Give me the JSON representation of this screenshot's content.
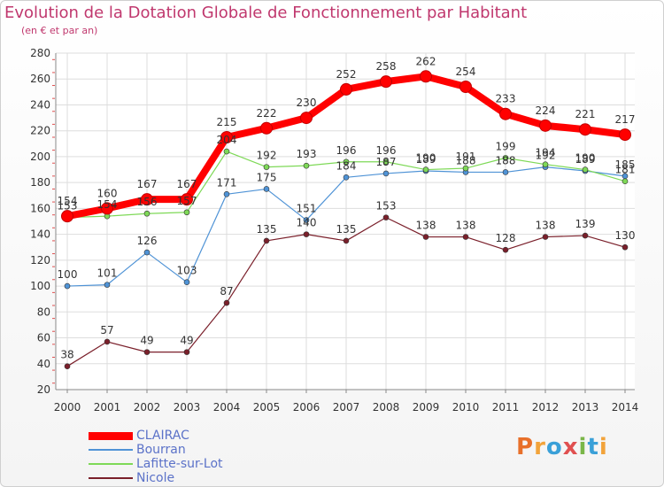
{
  "header": {
    "title": "Evolution de la Dotation Globale de Fonctionnement par Habitant",
    "subtitle": "(en € et par an)"
  },
  "logo": {
    "text": "Proxiti"
  },
  "chart_data": {
    "type": "line",
    "title": "Evolution de la Dotation Globale de Fonctionnement par Habitant",
    "subtitle": "(en € et par an)",
    "xlabel": "",
    "ylabel": "",
    "categories": [
      "2000",
      "2001",
      "2002",
      "2003",
      "2004",
      "2005",
      "2006",
      "2007",
      "2008",
      "2009",
      "2010",
      "2011",
      "2012",
      "2013",
      "2014"
    ],
    "ylim": [
      20,
      280
    ],
    "yticks": [
      20,
      40,
      60,
      80,
      100,
      120,
      140,
      160,
      180,
      200,
      220,
      240,
      260,
      280
    ],
    "grid": true,
    "legend_position": "bottom-left",
    "series": [
      {
        "name": "CLAIRAC",
        "color": "#ff0000",
        "values": [
          154,
          160,
          167,
          167,
          215,
          222,
          230,
          252,
          258,
          262,
          254,
          233,
          224,
          221,
          217
        ]
      },
      {
        "name": "Bourran",
        "color": "#4f93d6",
        "values": [
          100,
          101,
          126,
          103,
          171,
          175,
          151,
          184,
          187,
          189,
          188,
          188,
          192,
          189,
          185
        ]
      },
      {
        "name": "Lafitte-sur-Lot",
        "color": "#7ed957",
        "values": [
          153,
          154,
          156,
          157,
          204,
          192,
          193,
          196,
          196,
          190,
          191,
          199,
          194,
          190,
          181
        ]
      },
      {
        "name": "Nicole",
        "color": "#7a1f2a",
        "values": [
          38,
          57,
          49,
          49,
          87,
          135,
          140,
          135,
          153,
          138,
          138,
          128,
          138,
          139,
          130
        ]
      }
    ]
  }
}
